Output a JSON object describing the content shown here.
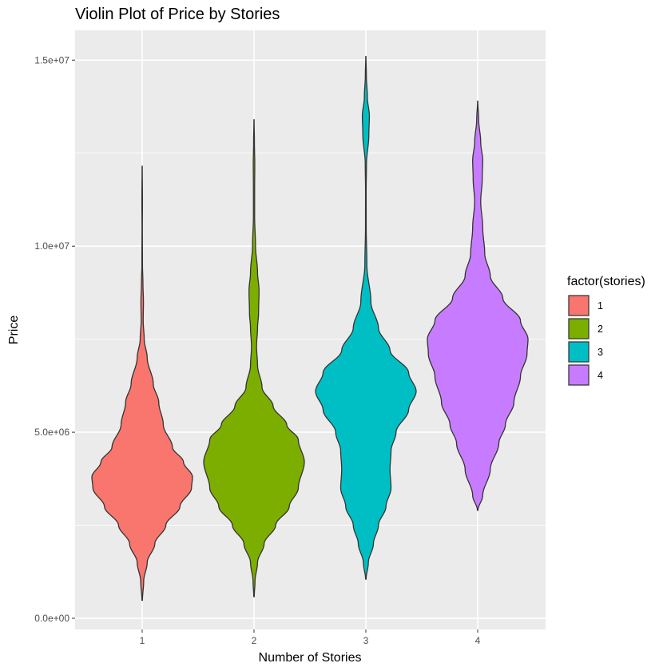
{
  "chart_data": {
    "type": "violin",
    "title": "Violin Plot of Price by Stories",
    "xlabel": "Number of Stories",
    "ylabel": "Price",
    "categories": [
      "1",
      "2",
      "3",
      "4"
    ],
    "y_ticks": [
      {
        "value": 0,
        "label": "0.0e+00"
      },
      {
        "value": 5000000,
        "label": "5.0e+06"
      },
      {
        "value": 10000000,
        "label": "1.0e+07"
      },
      {
        "value": 15000000,
        "label": "1.5e+07"
      }
    ],
    "ylim": [
      -300000,
      15800000
    ],
    "legend": {
      "title": "factor(stories)",
      "position": "right",
      "entries": [
        {
          "label": "1",
          "color": "#F8766D"
        },
        {
          "label": "2",
          "color": "#7CAE00"
        },
        {
          "label": "3",
          "color": "#00BFC4"
        },
        {
          "label": "4",
          "color": "#C77CFF"
        }
      ]
    },
    "grid": true,
    "panel_background": "#EBEBEB",
    "outline_color": "#333333",
    "series": [
      {
        "category": "1",
        "color": "#F8766D",
        "min": 480000,
        "max": 12150000,
        "density": [
          [
            480000,
            0.005
          ],
          [
            1000000,
            0.03
          ],
          [
            1500000,
            0.1
          ],
          [
            2000000,
            0.25
          ],
          [
            2500000,
            0.47
          ],
          [
            3000000,
            0.75
          ],
          [
            3500000,
            0.98
          ],
          [
            3800000,
            1.0
          ],
          [
            4200000,
            0.82
          ],
          [
            4600000,
            0.6
          ],
          [
            5200000,
            0.42
          ],
          [
            5800000,
            0.33
          ],
          [
            6300000,
            0.22
          ],
          [
            7000000,
            0.1
          ],
          [
            7500000,
            0.04
          ],
          [
            8000000,
            0.02
          ],
          [
            8500000,
            0.025
          ],
          [
            9000000,
            0.015
          ],
          [
            9500000,
            0.006
          ],
          [
            10500000,
            0.004
          ],
          [
            11200000,
            0.006
          ],
          [
            12150000,
            0.002
          ]
        ]
      },
      {
        "category": "2",
        "color": "#7CAE00",
        "min": 580000,
        "max": 13400000,
        "density": [
          [
            580000,
            0.005
          ],
          [
            1000000,
            0.02
          ],
          [
            1500000,
            0.07
          ],
          [
            2000000,
            0.2
          ],
          [
            2500000,
            0.43
          ],
          [
            3000000,
            0.7
          ],
          [
            3500000,
            0.88
          ],
          [
            4200000,
            1.0
          ],
          [
            4800000,
            0.88
          ],
          [
            5200000,
            0.65
          ],
          [
            5700000,
            0.38
          ],
          [
            6200000,
            0.16
          ],
          [
            6800000,
            0.07
          ],
          [
            7300000,
            0.05
          ],
          [
            7800000,
            0.07
          ],
          [
            8200000,
            0.09
          ],
          [
            8800000,
            0.1
          ],
          [
            9300000,
            0.07
          ],
          [
            10000000,
            0.03
          ],
          [
            10800000,
            0.012
          ],
          [
            11500000,
            0.012
          ],
          [
            12200000,
            0.015
          ],
          [
            12800000,
            0.008
          ],
          [
            13400000,
            0.002
          ]
        ]
      },
      {
        "category": "3",
        "color": "#00BFC4",
        "min": 1050000,
        "max": 15100000,
        "density": [
          [
            1050000,
            0.005
          ],
          [
            1500000,
            0.05
          ],
          [
            2000000,
            0.15
          ],
          [
            2500000,
            0.25
          ],
          [
            3000000,
            0.4
          ],
          [
            3500000,
            0.5
          ],
          [
            4000000,
            0.48
          ],
          [
            4500000,
            0.5
          ],
          [
            5000000,
            0.6
          ],
          [
            5600000,
            0.85
          ],
          [
            6100000,
            1.0
          ],
          [
            6600000,
            0.85
          ],
          [
            7200000,
            0.48
          ],
          [
            7800000,
            0.25
          ],
          [
            8500000,
            0.1
          ],
          [
            9500000,
            0.02
          ],
          [
            10500000,
            0.007
          ],
          [
            11500000,
            0.006
          ],
          [
            12200000,
            0.012
          ],
          [
            13000000,
            0.06
          ],
          [
            13500000,
            0.07
          ],
          [
            14000000,
            0.03
          ],
          [
            14600000,
            0.01
          ],
          [
            15100000,
            0.002
          ]
        ]
      },
      {
        "category": "4",
        "color": "#C77CFF",
        "min": 2900000,
        "max": 13900000,
        "density": [
          [
            2900000,
            0.005
          ],
          [
            3300000,
            0.1
          ],
          [
            4000000,
            0.25
          ],
          [
            4700000,
            0.42
          ],
          [
            5200000,
            0.55
          ],
          [
            5800000,
            0.72
          ],
          [
            6500000,
            0.85
          ],
          [
            7100000,
            0.98
          ],
          [
            7500000,
            1.0
          ],
          [
            8000000,
            0.85
          ],
          [
            8600000,
            0.5
          ],
          [
            9200000,
            0.25
          ],
          [
            9800000,
            0.14
          ],
          [
            10500000,
            0.1
          ],
          [
            11200000,
            0.06
          ],
          [
            11800000,
            0.09
          ],
          [
            12300000,
            0.1
          ],
          [
            12800000,
            0.06
          ],
          [
            13400000,
            0.02
          ],
          [
            13900000,
            0.002
          ]
        ]
      }
    ]
  }
}
